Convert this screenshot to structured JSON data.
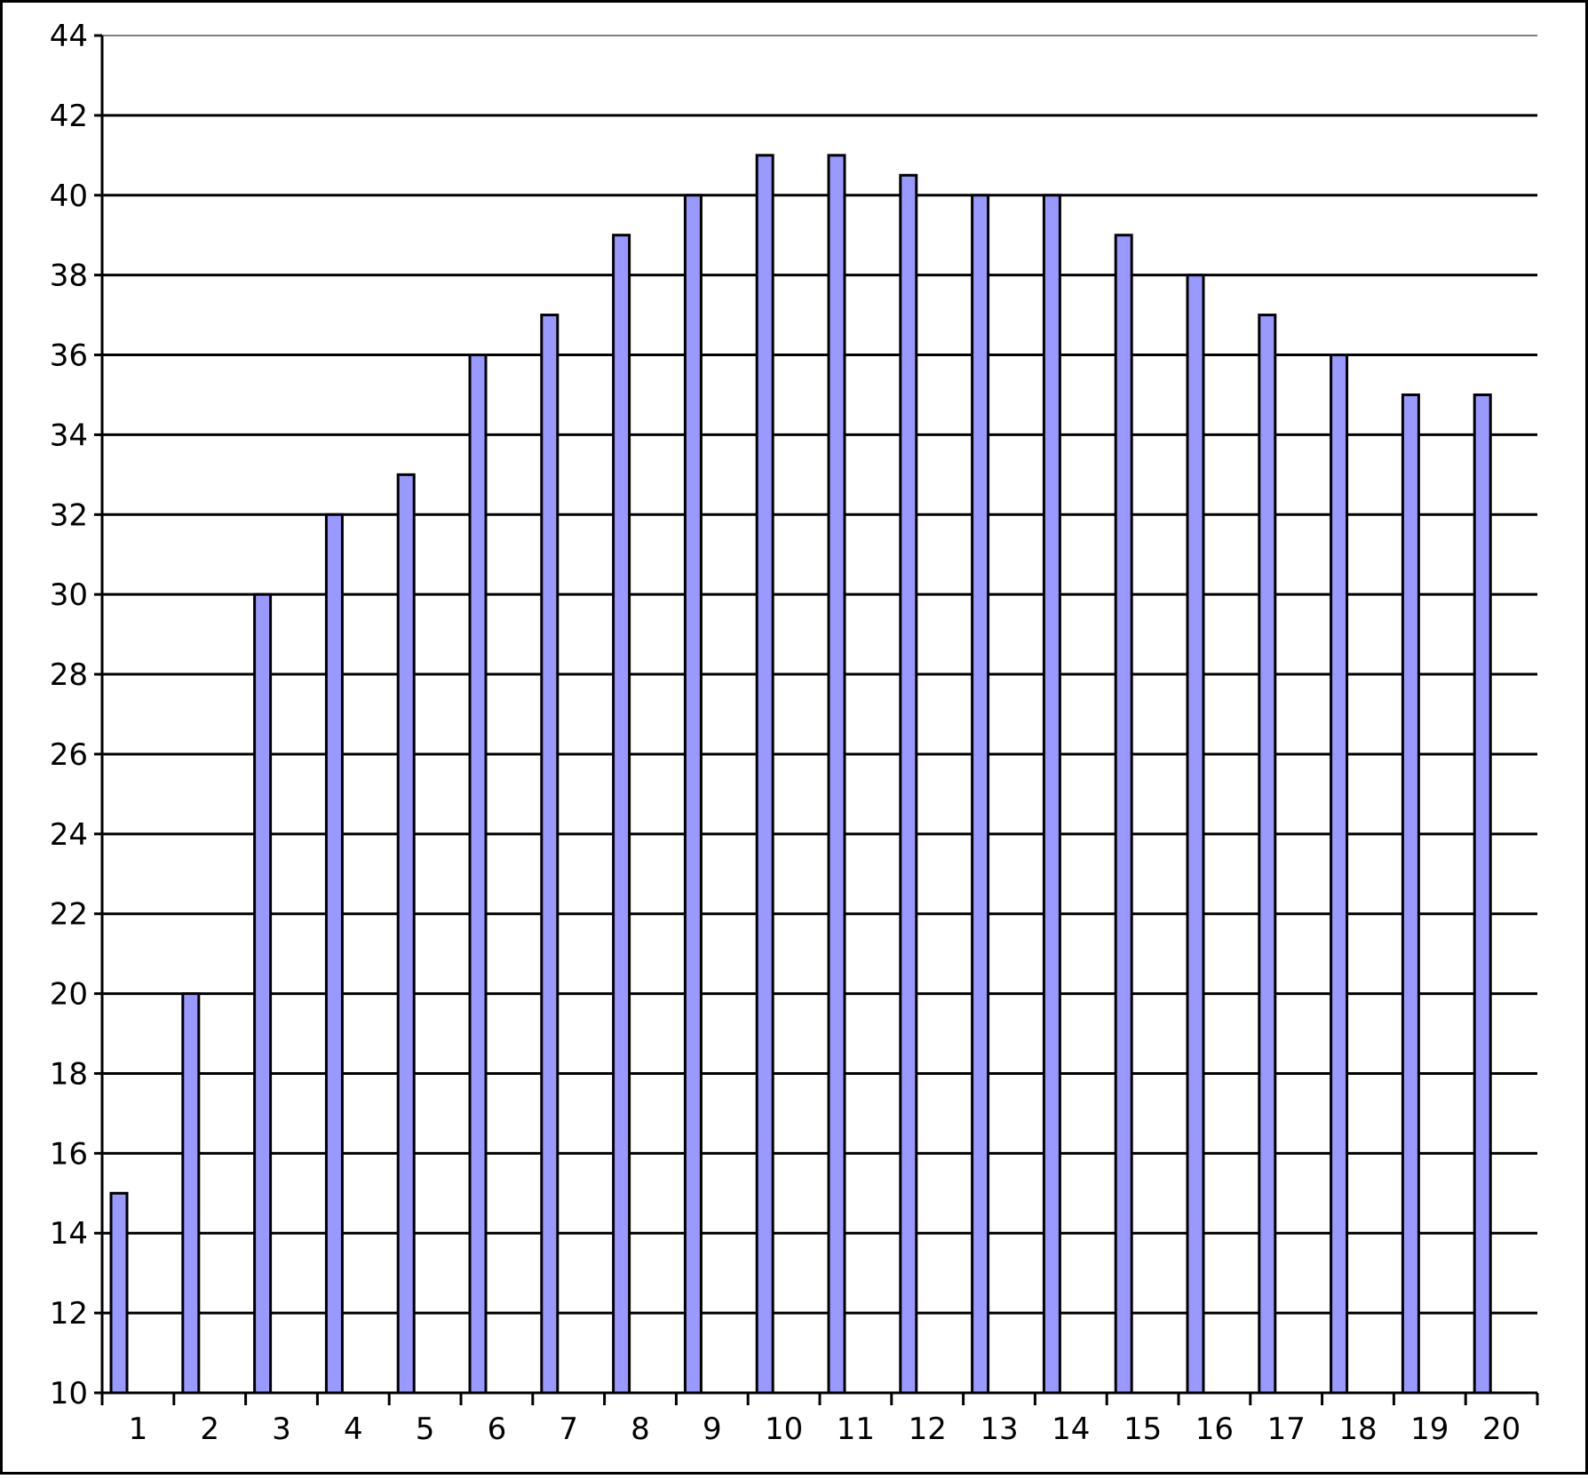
{
  "chart_data": {
    "type": "bar",
    "title": "",
    "xlabel": "",
    "ylabel": "",
    "categories": [
      "1",
      "2",
      "3",
      "4",
      "5",
      "6",
      "7",
      "8",
      "9",
      "10",
      "11",
      "12",
      "13",
      "14",
      "15",
      "16",
      "17",
      "18",
      "19",
      "20"
    ],
    "series": [
      {
        "values": [
          15,
          20,
          30,
          32,
          33,
          36,
          37,
          39,
          40,
          41,
          41,
          40.5,
          40,
          40,
          39,
          38,
          37,
          36,
          35,
          35
        ]
      }
    ],
    "ylim": [
      10,
      44
    ],
    "yticks": [
      10,
      12,
      14,
      16,
      18,
      20,
      22,
      24,
      26,
      28,
      30,
      32,
      34,
      36,
      38,
      40,
      42,
      44
    ],
    "grid": true,
    "legend": "none",
    "colors": {
      "bar_fill": "#9999ff",
      "bar_stroke": "#000000",
      "gridline": "#000000",
      "background": "#ffffff"
    }
  }
}
